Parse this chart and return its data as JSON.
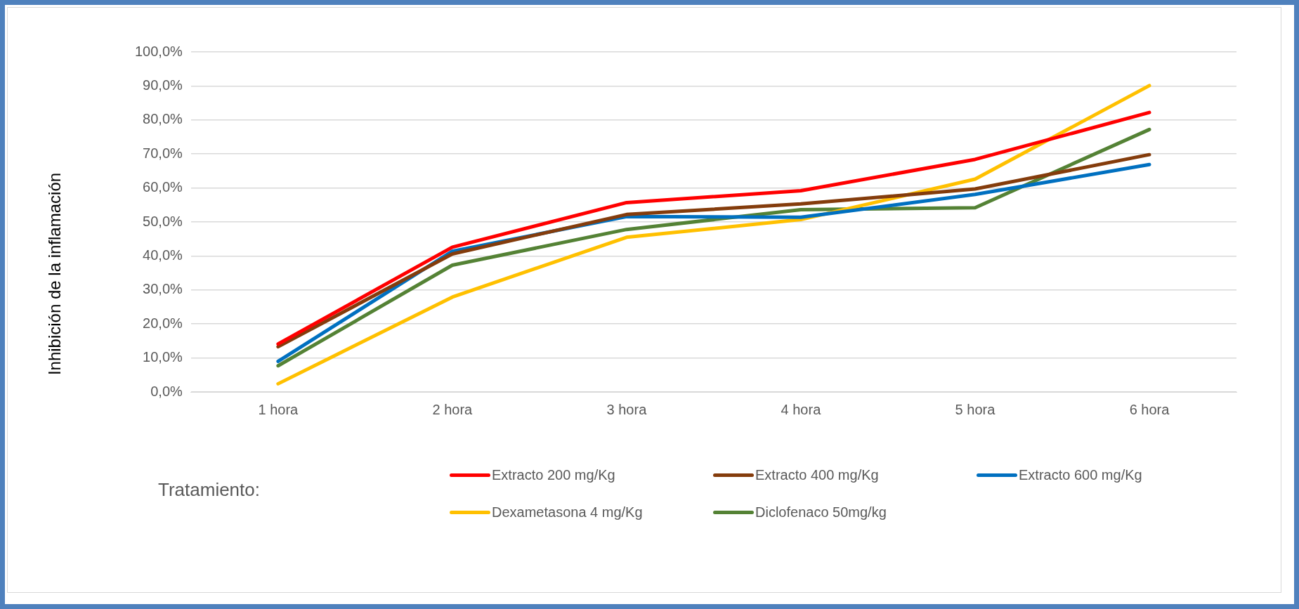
{
  "chart_data": {
    "type": "line",
    "ylabel": "Inhibición de la inflamación",
    "legend_title": "Tratamiento:",
    "categories": [
      "1 hora",
      "2 hora",
      "3 hora",
      "4 hora",
      "5 hora",
      "6 hora"
    ],
    "series": [
      {
        "name": "Extracto 200 mg/Kg",
        "color": "#ff0000",
        "values": [
          14.1,
          42.6,
          55.7,
          59.2,
          68.4,
          82.2
        ]
      },
      {
        "name": "Extracto 400 mg/Kg",
        "color": "#843c0c",
        "values": [
          13.3,
          40.6,
          52.2,
          55.3,
          59.7,
          69.8
        ]
      },
      {
        "name": "Extracto 600 mg/Kg",
        "color": "#0070c0",
        "values": [
          9.0,
          41.4,
          51.6,
          51.4,
          58.1,
          66.9
        ]
      },
      {
        "name": "Dexametasona 4 mg/Kg",
        "color": "#ffc000",
        "values": [
          2.4,
          27.9,
          45.5,
          50.7,
          62.6,
          90.1
        ]
      },
      {
        "name": "Diclofenaco 50mg/kg",
        "color": "#548235",
        "values": [
          7.7,
          37.3,
          47.8,
          53.6,
          54.2,
          77.2
        ]
      }
    ],
    "ylim": [
      0,
      100
    ],
    "yticks": [
      {
        "value": 0,
        "label": "0,0%"
      },
      {
        "value": 10,
        "label": "10,0%"
      },
      {
        "value": 20,
        "label": "20,0%"
      },
      {
        "value": 30,
        "label": "30,0%"
      },
      {
        "value": 40,
        "label": "40,0%"
      },
      {
        "value": 50,
        "label": "50,0%"
      },
      {
        "value": 60,
        "label": "60,0%"
      },
      {
        "value": 70,
        "label": "70,0%"
      },
      {
        "value": 80,
        "label": "80,0%"
      },
      {
        "value": 90,
        "label": "90,0%"
      },
      {
        "value": 100,
        "label": "100,0%"
      }
    ],
    "grid": "y",
    "legend": "bottom",
    "marker": "none",
    "line_style": "solid"
  }
}
